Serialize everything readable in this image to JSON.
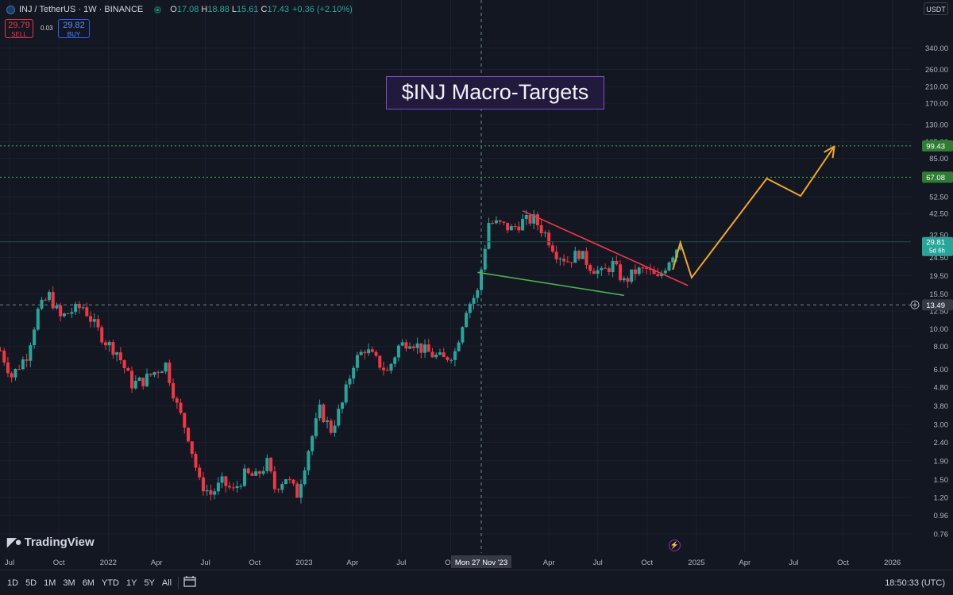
{
  "header": {
    "symbol": "INJ / TetherUS · 1W · BINANCE",
    "ohlc": [
      {
        "k": "O",
        "v": "17.08"
      },
      {
        "k": "H",
        "v": "18.88"
      },
      {
        "k": "L",
        "v": "15.61"
      },
      {
        "k": "C",
        "v": "17.43"
      }
    ],
    "change": "+0.36 (+2.10%)"
  },
  "trade": {
    "sell_price": "29.79",
    "sell_label": "SELL",
    "spread": "0.03",
    "buy_price": "29.82",
    "buy_label": "BUY"
  },
  "currency_button": "USDT",
  "title_box": "$INJ Macro-Targets",
  "logo_text": "TradingView",
  "crosshair_date": "Mon 27 Nov '23",
  "bottom": {
    "timeframes": [
      "1D",
      "5D",
      "1M",
      "3M",
      "6M",
      "YTD",
      "1Y",
      "5Y",
      "All"
    ],
    "time": "18:50:33 (UTC)"
  },
  "colors": {
    "up": "#26a69a",
    "down": "#f23645",
    "orange": "#f5a623",
    "green_line": "#4caf50",
    "red_line": "#f23645",
    "level": "#4caf50"
  },
  "chart_data": {
    "type": "candlestick",
    "scale": "log",
    "ylim": [
      0.7,
      400
    ],
    "y_ticks": [
      "340.00",
      "260.00",
      "210.00",
      "170.00",
      "130.00",
      "105.00",
      "85.00",
      "52.50",
      "42.50",
      "32.50",
      "24.50",
      "19.50",
      "15.50",
      "12.50",
      "10.00",
      "8.00",
      "6.00",
      "4.80",
      "3.80",
      "3.00",
      "2.40",
      "1.90",
      "1.50",
      "1.20",
      "0.96",
      "0.76"
    ],
    "x_ticks": [
      {
        "label": "Jul",
        "date": "2021-07-01"
      },
      {
        "label": "Oct",
        "date": "2021-10-01"
      },
      {
        "label": "2022",
        "date": "2022-01-01"
      },
      {
        "label": "Apr",
        "date": "2022-04-01"
      },
      {
        "label": "Jul",
        "date": "2022-07-01"
      },
      {
        "label": "Oct",
        "date": "2022-10-01"
      },
      {
        "label": "2023",
        "date": "2023-01-01"
      },
      {
        "label": "Apr",
        "date": "2023-04-01"
      },
      {
        "label": "Jul",
        "date": "2023-07-01"
      },
      {
        "label": "Oct",
        "date": "2023-10-01"
      },
      {
        "label": "Apr",
        "date": "2024-04-01"
      },
      {
        "label": "Jul",
        "date": "2024-07-01"
      },
      {
        "label": "Oct",
        "date": "2024-10-01"
      },
      {
        "label": "2025",
        "date": "2025-01-01"
      },
      {
        "label": "Apr",
        "date": "2025-04-01"
      },
      {
        "label": "Jul",
        "date": "2025-07-01"
      },
      {
        "label": "Oct",
        "date": "2025-10-01"
      },
      {
        "label": "2026",
        "date": "2026-01-01"
      }
    ],
    "price_path": [
      [
        "2021-06-14",
        7.6
      ],
      [
        "2021-07-05",
        5.5
      ],
      [
        "2021-08-02",
        7.2
      ],
      [
        "2021-08-23",
        12.5
      ],
      [
        "2021-09-13",
        15.2
      ],
      [
        "2021-10-04",
        11.5
      ],
      [
        "2021-10-25",
        12.5
      ],
      [
        "2021-11-15",
        13.2
      ],
      [
        "2021-12-06",
        10.5
      ],
      [
        "2021-12-27",
        8.5
      ],
      [
        "2022-01-17",
        7.5
      ],
      [
        "2022-02-14",
        5.0
      ],
      [
        "2022-03-07",
        5.2
      ],
      [
        "2022-03-28",
        5.8
      ],
      [
        "2022-04-18",
        6.4
      ],
      [
        "2022-05-09",
        3.8
      ],
      [
        "2022-05-30",
        2.6
      ],
      [
        "2022-06-20",
        1.45
      ],
      [
        "2022-07-11",
        1.25
      ],
      [
        "2022-08-01",
        1.45
      ],
      [
        "2022-08-22",
        1.3
      ],
      [
        "2022-09-12",
        1.6
      ],
      [
        "2022-10-03",
        1.55
      ],
      [
        "2022-10-24",
        1.85
      ],
      [
        "2022-11-07",
        1.35
      ],
      [
        "2022-11-28",
        1.55
      ],
      [
        "2022-12-19",
        1.25
      ],
      [
        "2023-01-09",
        2.2
      ],
      [
        "2023-01-30",
        3.6
      ],
      [
        "2023-02-20",
        2.8
      ],
      [
        "2023-03-13",
        3.9
      ],
      [
        "2023-04-03",
        6.5
      ],
      [
        "2023-04-24",
        7.8
      ],
      [
        "2023-05-15",
        6.7
      ],
      [
        "2023-06-05",
        5.8
      ],
      [
        "2023-06-26",
        8.0
      ],
      [
        "2023-07-17",
        8.7
      ],
      [
        "2023-08-07",
        7.8
      ],
      [
        "2023-08-28",
        7.2
      ],
      [
        "2023-09-18",
        6.8
      ],
      [
        "2023-10-09",
        7.5
      ],
      [
        "2023-10-30",
        13.0
      ],
      [
        "2023-11-20",
        15.8
      ],
      [
        "2023-12-11",
        38.0
      ],
      [
        "2024-01-01",
        37.0
      ],
      [
        "2024-01-22",
        35.0
      ],
      [
        "2024-02-12",
        38.5
      ],
      [
        "2024-03-04",
        39.5
      ],
      [
        "2024-03-25",
        33.0
      ],
      [
        "2024-04-15",
        26.0
      ],
      [
        "2024-05-06",
        23.5
      ],
      [
        "2024-05-27",
        26.0
      ],
      [
        "2024-06-17",
        22.0
      ],
      [
        "2024-07-08",
        20.0
      ],
      [
        "2024-07-29",
        22.5
      ],
      [
        "2024-08-19",
        18.0
      ],
      [
        "2024-09-09",
        20.5
      ],
      [
        "2024-09-30",
        21.0
      ],
      [
        "2024-10-21",
        18.5
      ],
      [
        "2024-11-11",
        24.0
      ],
      [
        "2024-12-02",
        29.8
      ]
    ],
    "horizontal_levels": [
      {
        "price": 99.43,
        "label": "99.43"
      },
      {
        "price": 67.08,
        "label": "67.08"
      }
    ],
    "current_price": {
      "label": "29.81",
      "sub": "5d 6h",
      "price": 29.81
    },
    "crosshair": {
      "date": "2023-11-27",
      "price": 13.49,
      "label": "13.49"
    },
    "trendlines": [
      {
        "name": "descending-resistance",
        "from": [
          "2024-02-12",
          44.0
        ],
        "to": [
          "2024-12-16",
          17.2
        ]
      },
      {
        "name": "descending-support",
        "from": [
          "2023-11-20",
          20.3
        ],
        "to": [
          "2024-08-19",
          15.2
        ]
      }
    ],
    "projection_path": [
      [
        "2024-11-18",
        21.0
      ],
      [
        "2024-12-02",
        29.5
      ],
      [
        "2024-12-23",
        19.0
      ],
      [
        "2025-05-12",
        66.0
      ],
      [
        "2025-07-14",
        53.0
      ],
      [
        "2025-09-15",
        99.0
      ]
    ]
  }
}
